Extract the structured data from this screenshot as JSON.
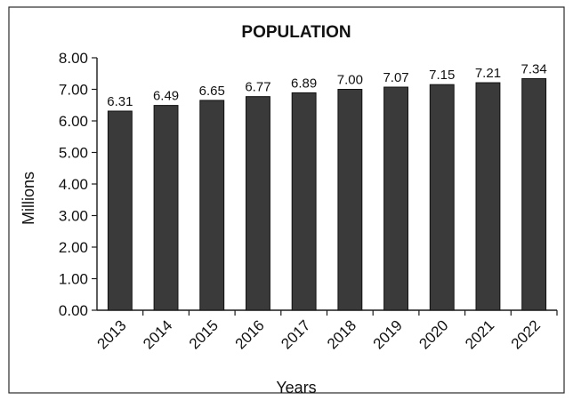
{
  "chart_data": {
    "type": "bar",
    "title": "POPULATION",
    "xlabel": "Years",
    "ylabel": "Millions",
    "categories": [
      "2013",
      "2014",
      "2015",
      "2016",
      "2017",
      "2018",
      "2019",
      "2020",
      "2021",
      "2022"
    ],
    "values": [
      6.31,
      6.49,
      6.65,
      6.77,
      6.89,
      7.0,
      7.07,
      7.15,
      7.21,
      7.34
    ],
    "value_labels": [
      "6.31",
      "6.49",
      "6.65",
      "6.77",
      "6.89",
      "7.00",
      "7.07",
      "7.15",
      "7.21",
      "7.34"
    ],
    "ylim": [
      0,
      8
    ],
    "y_ticks": [
      "0.00",
      "1.00",
      "2.00",
      "3.00",
      "4.00",
      "5.00",
      "6.00",
      "7.00",
      "8.00"
    ],
    "grid": false,
    "legend": "none",
    "colors": {
      "bar": "#3a3a3a",
      "axis": "#1a1a1a"
    }
  }
}
